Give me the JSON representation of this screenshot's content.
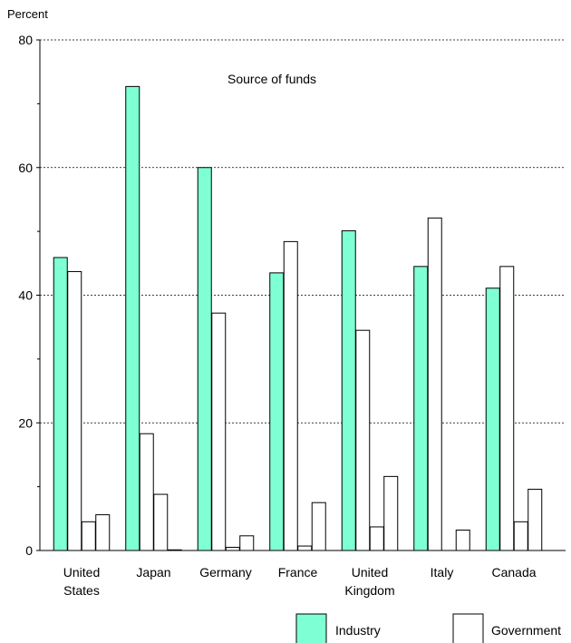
{
  "chart_data": {
    "type": "bar",
    "ylabel": "Percent",
    "annotation": "Source of funds",
    "ylim": [
      0,
      80
    ],
    "yticks": [
      0,
      20,
      40,
      60,
      80
    ],
    "grid": true,
    "legend_position": "bottom",
    "categories": [
      [
        "United",
        "States"
      ],
      [
        "Japan"
      ],
      [
        "Germany"
      ],
      [
        "France"
      ],
      [
        "United",
        "Kingdom"
      ],
      [
        "Italy"
      ],
      [
        "Canada"
      ]
    ],
    "series": [
      {
        "name": "Industry",
        "color": "#7fffd4",
        "values": [
          45.9,
          72.7,
          60.0,
          43.5,
          50.1,
          44.5,
          41.1
        ]
      },
      {
        "name": "Government",
        "color": "#ffffff",
        "values": [
          43.7,
          18.3,
          37.2,
          48.4,
          34.5,
          52.1,
          44.5
        ]
      },
      {
        "color": "#ffffff",
        "values": [
          4.5,
          8.8,
          0.5,
          0.7,
          3.7,
          0,
          4.5
        ]
      },
      {
        "color": "#ffffff",
        "values": [
          5.6,
          0.1,
          2.3,
          7.5,
          11.6,
          3.2,
          9.6
        ]
      }
    ]
  }
}
